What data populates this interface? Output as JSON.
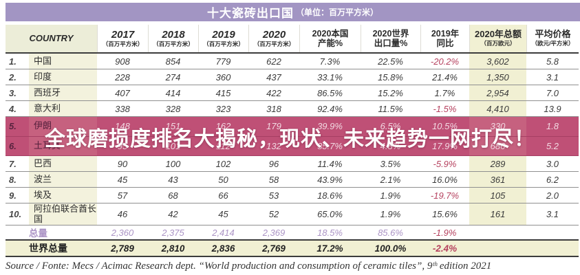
{
  "title": {
    "main": "十大瓷砖出口国",
    "unit": "（单位：百万平方米）"
  },
  "table": {
    "country_header": "COUNTRY",
    "columns": [
      {
        "label": "2017",
        "sub": "（百万平方米）"
      },
      {
        "label": "2018",
        "sub": "（百万平方米）"
      },
      {
        "label": "2019",
        "sub": "（百万平方米）"
      },
      {
        "label": "2020",
        "sub": "（百万平方米）"
      },
      {
        "label": "2020本国",
        "sub": "产能%"
      },
      {
        "label": "2020世界",
        "sub": "出口量%"
      },
      {
        "label": "2019年",
        "sub": "同比"
      },
      {
        "label": "2020年总额",
        "sub": "（百万欧元）"
      },
      {
        "label": "平均价格",
        "sub": "（欧元/平方米）"
      }
    ],
    "rows": [
      {
        "rank": "1.",
        "country": "中国",
        "highlighted": false,
        "values": [
          "908",
          "854",
          "779",
          "622",
          "7.3%",
          "22.5%",
          "-20.2%",
          "3,602",
          "5.8"
        ]
      },
      {
        "rank": "2.",
        "country": "印度",
        "highlighted": false,
        "values": [
          "228",
          "274",
          "360",
          "437",
          "33.1%",
          "15.8%",
          "21.4%",
          "1,350",
          "3.1"
        ]
      },
      {
        "rank": "3.",
        "country": "西班牙",
        "highlighted": false,
        "values": [
          "407",
          "414",
          "415",
          "422",
          "86.5%",
          "15.2%",
          "1.7%",
          "2,954",
          "7.0"
        ]
      },
      {
        "rank": "4.",
        "country": "意大利",
        "highlighted": false,
        "values": [
          "338",
          "328",
          "323",
          "318",
          "92.4%",
          "11.5%",
          "-1.5%",
          "4,410",
          "13.9"
        ]
      },
      {
        "rank": "5.",
        "country": "伊朗",
        "highlighted": true,
        "values": [
          "148",
          "151",
          "162",
          "179",
          "39.9%",
          "6.5%",
          "10.5%",
          "330",
          "1.8"
        ]
      },
      {
        "rank": "6.",
        "country": "土耳其",
        "highlighted": true,
        "values": [
          "95",
          "101",
          "112",
          "132",
          "35.7%",
          "4.8%",
          "17.9%",
          "686",
          "5.2"
        ]
      },
      {
        "rank": "7.",
        "country": "巴西",
        "highlighted": false,
        "values": [
          "90",
          "100",
          "102",
          "96",
          "11.4%",
          "3.5%",
          "-5.9%",
          "289",
          "3.0"
        ]
      },
      {
        "rank": "8.",
        "country": "波兰",
        "highlighted": false,
        "values": [
          "45",
          "43",
          "50",
          "58",
          "43.9%",
          "2.1%",
          "16.0%",
          "361",
          "6.2"
        ]
      },
      {
        "rank": "9.",
        "country": "埃及",
        "highlighted": false,
        "values": [
          "57",
          "68",
          "66",
          "53",
          "18.6%",
          "1.9%",
          "-19.7%",
          "105",
          "2.0"
        ]
      },
      {
        "rank": "10.",
        "country": "阿拉伯联合酋长国",
        "highlighted": false,
        "values": [
          "46",
          "42",
          "45",
          "52",
          "65.0%",
          "1.9%",
          "15.6%",
          "161",
          "3.1"
        ]
      }
    ],
    "totals": [
      {
        "label": "总量",
        "kind": "sum",
        "values": [
          "2,360",
          "2,375",
          "2,414",
          "2,369",
          "18.5%",
          "85.6%",
          "-1.9%",
          "",
          ""
        ]
      },
      {
        "label": "世界总量",
        "kind": "world",
        "values": [
          "2,789",
          "2,810",
          "2,836",
          "2,769",
          "17.2%",
          "100.0%",
          "-2.4%",
          "",
          ""
        ]
      }
    ]
  },
  "overlay": {
    "headline": "全球磨损度排名大揭秘，现状、未来趋势一网打尽！"
  },
  "source": "Source / Fonte: Mecs / Acimac Research dept. “World production and consumption of ceramic tiles”, 9ᵗʰ edition 2021",
  "colors": {
    "title_bar": "#a295c3",
    "highlight_row": "#bf5076",
    "country_column": "#f3f2dd",
    "country_header": "#ecedd8",
    "amount_column": "#f1f0d3",
    "negative_value": "#b5405e",
    "totals_text": "#ab93c5"
  }
}
